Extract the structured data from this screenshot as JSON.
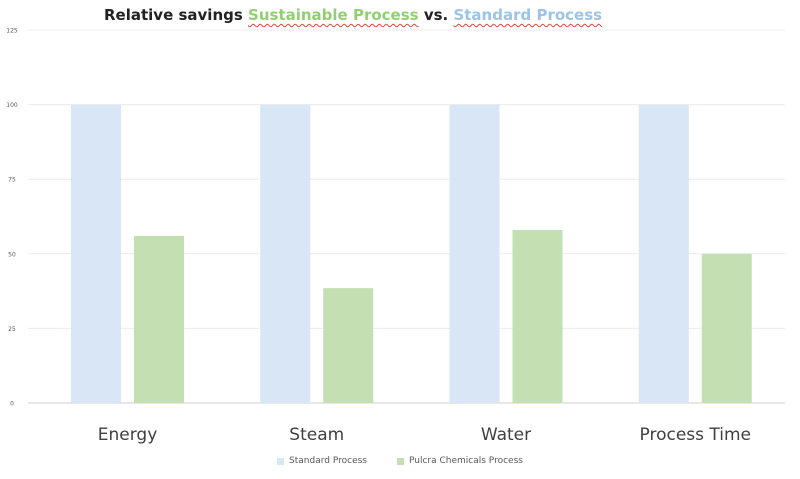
{
  "chart_data": {
    "type": "bar",
    "title_parts": {
      "prefix": "Relative savings",
      "green_part": "Sustainable Process",
      "middle": "vs.",
      "blue_part": "Standard Process"
    },
    "categories": [
      "Energy",
      "Steam",
      "Water",
      "Process Time"
    ],
    "series": [
      {
        "name": "Standard Process",
        "color": "#d9e6f5",
        "values": [
          100,
          100,
          100,
          100
        ]
      },
      {
        "name": "Pulcra Chemicals Process",
        "color": "#c4e0b2",
        "values": [
          56,
          38.5,
          58,
          50
        ]
      }
    ],
    "yticks": [
      "0",
      "25",
      "50",
      "75",
      "100",
      "125"
    ],
    "ylim": [
      0,
      125
    ],
    "grid": true,
    "legend_position": "bottom"
  }
}
